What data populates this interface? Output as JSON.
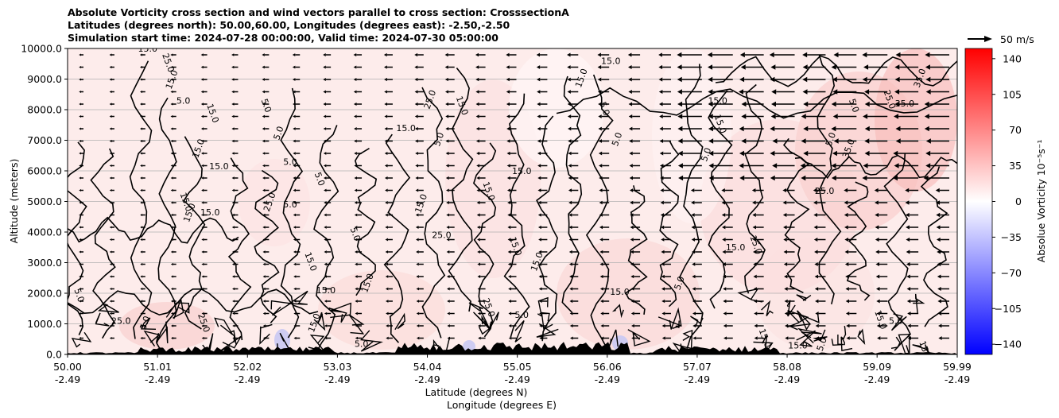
{
  "chart_data": {
    "type": "heatmap",
    "title_lines": [
      "Absolute Vorticity cross section and wind vectors parallel to cross section: CrosssectionA",
      "Latitudes (degrees north): 50.00,60.00, Longitudes (degrees east): -2.50,-2.50",
      "Simulation start time: 2024-07-28 00:00:00, Valid time: 2024-07-30 05:00:00"
    ],
    "ylabel": "Altitude (meters)",
    "xlabel_lines": [
      "Latitude (degrees N)",
      "Longitude (degrees E)"
    ],
    "ylim": [
      0,
      10000
    ],
    "xlim": [
      50.0,
      59.99
    ],
    "y_ticks": [
      "0.0",
      "1000.0",
      "2000.0",
      "3000.0",
      "4000.0",
      "5000.0",
      "6000.0",
      "7000.0",
      "8000.0",
      "9000.0",
      "10000.0"
    ],
    "x_ticks": [
      {
        "lat": "50.00",
        "lon": "-2.49"
      },
      {
        "lat": "51.01",
        "lon": "-2.49"
      },
      {
        "lat": "52.02",
        "lon": "-2.49"
      },
      {
        "lat": "53.03",
        "lon": "-2.49"
      },
      {
        "lat": "54.04",
        "lon": "-2.49"
      },
      {
        "lat": "55.05",
        "lon": "-2.49"
      },
      {
        "lat": "56.06",
        "lon": "-2.49"
      },
      {
        "lat": "57.07",
        "lon": "-2.49"
      },
      {
        "lat": "58.08",
        "lon": "-2.49"
      },
      {
        "lat": "59.09",
        "lon": "-2.49"
      },
      {
        "lat": "59.99",
        "lon": "-2.49"
      }
    ],
    "grid": "horizontal",
    "colorbar": {
      "label": "Absolue Vorticity 10⁻⁵s⁻¹",
      "range": [
        -150,
        150
      ],
      "ticks": [
        "140",
        "105",
        "70",
        "35",
        "0",
        "−35",
        "−70",
        "−105",
        "−140"
      ],
      "colors": {
        "low": "#0000ff",
        "mid": "#ffffff",
        "high": "#ff0000"
      }
    },
    "quiver_key": {
      "label": "50 m/s"
    },
    "contour_labels": [
      {
        "text": "15.0",
        "x": 50.9,
        "y": 9900
      },
      {
        "text": "25.0",
        "x": 51.1,
        "y": 9500
      },
      {
        "text": "15.0",
        "x": 51.2,
        "y": 8950
      },
      {
        "text": "5.0",
        "x": 51.3,
        "y": 8200
      },
      {
        "text": "15.0",
        "x": 51.6,
        "y": 7850
      },
      {
        "text": "15.0",
        "x": 51.5,
        "y": 6700
      },
      {
        "text": "15.0",
        "x": 51.7,
        "y": 6050
      },
      {
        "text": "15.0",
        "x": 51.3,
        "y": 4950
      },
      {
        "text": "15.0",
        "x": 51.4,
        "y": 4600
      },
      {
        "text": "15.0",
        "x": 51.6,
        "y": 4550
      },
      {
        "text": "5.0",
        "x": 52.2,
        "y": 8100
      },
      {
        "text": "5.0",
        "x": 52.4,
        "y": 7200
      },
      {
        "text": "5.0",
        "x": 52.5,
        "y": 6200
      },
      {
        "text": "5.0",
        "x": 52.8,
        "y": 5700
      },
      {
        "text": "25.0",
        "x": 52.3,
        "y": 4950
      },
      {
        "text": "5.0",
        "x": 52.5,
        "y": 4800
      },
      {
        "text": "5.0",
        "x": 53.2,
        "y": 3900
      },
      {
        "text": "15.0",
        "x": 53.4,
        "y": 2300
      },
      {
        "text": "15.0",
        "x": 52.9,
        "y": 2000
      },
      {
        "text": "15.0",
        "x": 52.7,
        "y": 3000
      },
      {
        "text": "5.0",
        "x": 54.2,
        "y": 7000
      },
      {
        "text": "15.0",
        "x": 53.8,
        "y": 7300
      },
      {
        "text": "15.0",
        "x": 54.4,
        "y": 8100
      },
      {
        "text": "25.0",
        "x": 54.1,
        "y": 8300
      },
      {
        "text": "25.0",
        "x": 54.2,
        "y": 3800
      },
      {
        "text": "15.0",
        "x": 54.7,
        "y": 5300
      },
      {
        "text": "15.0",
        "x": 54.0,
        "y": 4900
      },
      {
        "text": "15.0",
        "x": 55.1,
        "y": 5900
      },
      {
        "text": "15.0",
        "x": 55.0,
        "y": 3500
      },
      {
        "text": "15.0",
        "x": 55.3,
        "y": 3000
      },
      {
        "text": "5.0",
        "x": 55.1,
        "y": 1200
      },
      {
        "text": "25.0",
        "x": 54.7,
        "y": 1500
      },
      {
        "text": "15.0",
        "x": 55.8,
        "y": 9000
      },
      {
        "text": "15.0",
        "x": 56.1,
        "y": 9500
      },
      {
        "text": "5.0",
        "x": 56.0,
        "y": 8000
      },
      {
        "text": "5.0",
        "x": 56.2,
        "y": 7000
      },
      {
        "text": "15.0",
        "x": 57.3,
        "y": 8200
      },
      {
        "text": "15.0",
        "x": 57.3,
        "y": 7500
      },
      {
        "text": "5.0",
        "x": 57.2,
        "y": 6500
      },
      {
        "text": "15.0",
        "x": 57.5,
        "y": 3400
      },
      {
        "text": "15.0",
        "x": 57.7,
        "y": 3550
      },
      {
        "text": "5.0",
        "x": 56.9,
        "y": 2300
      },
      {
        "text": "15.0",
        "x": 56.2,
        "y": 1950
      },
      {
        "text": "5.0",
        "x": 58.8,
        "y": 8100
      },
      {
        "text": "5.0",
        "x": 58.6,
        "y": 7000
      },
      {
        "text": "25.0",
        "x": 58.5,
        "y": 5250
      },
      {
        "text": "15.0",
        "x": 59.1,
        "y": 1100
      },
      {
        "text": "35.0",
        "x": 59.6,
        "y": 9000
      },
      {
        "text": "35.0",
        "x": 59.4,
        "y": 8100
      },
      {
        "text": "25.0",
        "x": 59.2,
        "y": 8300
      },
      {
        "text": "35.0",
        "x": 58.8,
        "y": 6700
      },
      {
        "text": "5.0",
        "x": 59.3,
        "y": 1000
      },
      {
        "text": "15.0",
        "x": 59.6,
        "y": 100
      },
      {
        "text": "5.0",
        "x": 58.5,
        "y": 300
      },
      {
        "text": "15.0",
        "x": 58.2,
        "y": 200
      },
      {
        "text": "15.0",
        "x": 57.8,
        "y": 500
      },
      {
        "text": "5.0",
        "x": 50.9,
        "y": 1000
      },
      {
        "text": "25.0",
        "x": 50.6,
        "y": 1000
      },
      {
        "text": "25.0",
        "x": 51.5,
        "y": 1000
      },
      {
        "text": "15.0",
        "x": 52.8,
        "y": 1000
      },
      {
        "text": "5.0",
        "x": 53.3,
        "y": 250
      },
      {
        "text": "5.0",
        "x": 50.1,
        "y": 1900
      }
    ]
  }
}
